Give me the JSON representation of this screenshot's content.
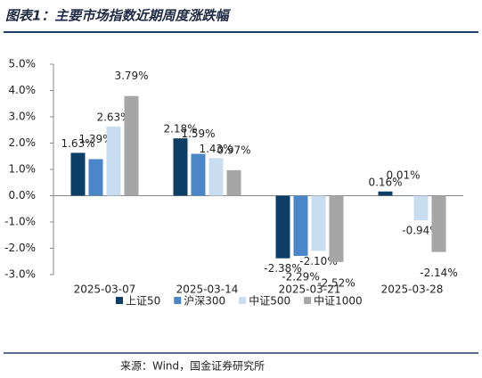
{
  "chart_data": {
    "type": "bar",
    "title": "图表1：主要市场指数近期周度涨跌幅",
    "source": "来源：Wind，国金证券研究所",
    "categories": [
      "2025-03-07",
      "2025-03-14",
      "2025-03-21",
      "2025-03-28"
    ],
    "series": [
      {
        "name": "上证50",
        "color": "#0d3f66",
        "values": [
          1.63,
          2.18,
          -2.38,
          0.16
        ],
        "value_labels": [
          "1.63%",
          "2.18%",
          "-2.38%",
          "0.16%"
        ]
      },
      {
        "name": "沪深300",
        "color": "#4a86c8",
        "values": [
          1.39,
          1.59,
          -2.29,
          0.01
        ],
        "value_labels": [
          "1.39%",
          "1.59%",
          "-2.29%",
          "0.01%"
        ]
      },
      {
        "name": "中证500",
        "color": "#c9ddf0",
        "values": [
          2.63,
          1.43,
          -2.1,
          -0.94
        ],
        "value_labels": [
          "2.63%",
          "1.43%",
          "-2.10%",
          "-0.94%"
        ]
      },
      {
        "name": "中证1000",
        "color": "#a6a6a6",
        "values": [
          3.79,
          0.97,
          -2.52,
          -2.14
        ],
        "value_labels": [
          "3.79%",
          "0.97%",
          "-2.52%",
          "-2.14%"
        ]
      }
    ],
    "ylim": [
      -3,
      5
    ],
    "yticks": [
      {
        "value": -3,
        "label": "-3.0%"
      },
      {
        "value": -2,
        "label": "-2.0%"
      },
      {
        "value": -1,
        "label": "-1.0%"
      },
      {
        "value": 0,
        "label": "0.0%"
      },
      {
        "value": 1,
        "label": "1.0%"
      },
      {
        "value": 2,
        "label": "2.0%"
      },
      {
        "value": 3,
        "label": "3.0%"
      },
      {
        "value": 4,
        "label": "4.0%"
      },
      {
        "value": 5,
        "label": "5.0%"
      }
    ],
    "grid": false,
    "legend": "bottom"
  }
}
